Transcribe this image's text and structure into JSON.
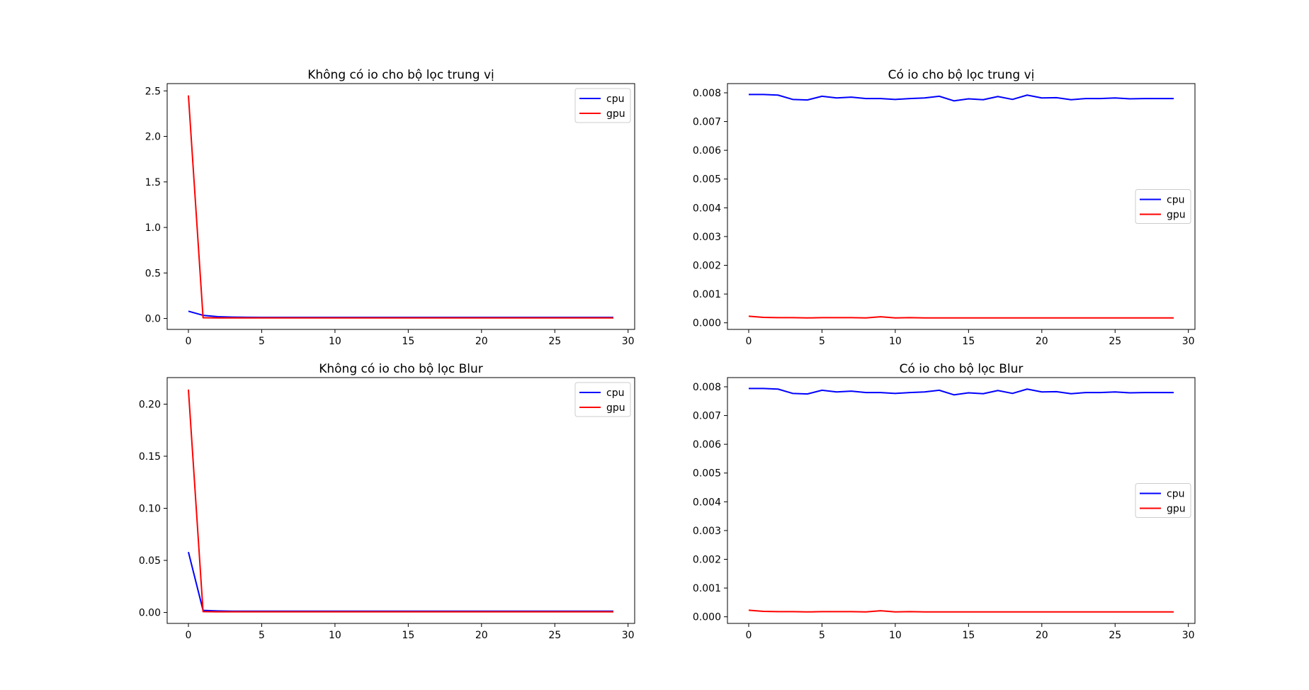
{
  "chart_data": [
    {
      "type": "line",
      "title": "Không có io cho bộ lọc trung vị",
      "xlabel": "",
      "ylabel": "",
      "xlim": [
        -1.45,
        30.45
      ],
      "ylim": [
        -0.12,
        2.58
      ],
      "xticks": [
        0,
        5,
        10,
        15,
        20,
        25,
        30
      ],
      "yticks": [
        0.0,
        0.5,
        1.0,
        1.5,
        2.0,
        2.5
      ],
      "ytick_labels": [
        "0.0",
        "0.5",
        "1.0",
        "1.5",
        "2.0",
        "2.5"
      ],
      "legend": "upper right",
      "x": [
        0,
        1,
        2,
        3,
        4,
        5,
        6,
        7,
        8,
        9,
        10,
        11,
        12,
        13,
        14,
        15,
        16,
        17,
        18,
        19,
        20,
        21,
        22,
        23,
        24,
        25,
        26,
        27,
        28,
        29
      ],
      "series": [
        {
          "name": "cpu",
          "color": "#0000ff",
          "values": [
            0.08,
            0.035,
            0.02,
            0.015,
            0.013,
            0.012,
            0.012,
            0.012,
            0.012,
            0.012,
            0.012,
            0.012,
            0.012,
            0.012,
            0.012,
            0.012,
            0.012,
            0.012,
            0.012,
            0.012,
            0.012,
            0.012,
            0.012,
            0.012,
            0.012,
            0.012,
            0.012,
            0.012,
            0.012,
            0.012
          ]
        },
        {
          "name": "gpu",
          "color": "#ff0000",
          "values": [
            2.45,
            0.008,
            0.006,
            0.006,
            0.006,
            0.006,
            0.006,
            0.006,
            0.006,
            0.006,
            0.006,
            0.006,
            0.006,
            0.006,
            0.006,
            0.006,
            0.006,
            0.006,
            0.006,
            0.006,
            0.006,
            0.006,
            0.006,
            0.006,
            0.006,
            0.006,
            0.006,
            0.006,
            0.006,
            0.006
          ]
        }
      ]
    },
    {
      "type": "line",
      "title": "Có io cho bộ lọc trung vị",
      "xlabel": "",
      "ylabel": "",
      "xlim": [
        -1.45,
        30.45
      ],
      "ylim": [
        -0.00023,
        0.00832
      ],
      "xticks": [
        0,
        5,
        10,
        15,
        20,
        25,
        30
      ],
      "yticks": [
        0.0,
        0.001,
        0.002,
        0.003,
        0.004,
        0.005,
        0.006,
        0.007,
        0.008
      ],
      "ytick_labels": [
        "0.000",
        "0.001",
        "0.002",
        "0.003",
        "0.004",
        "0.005",
        "0.006",
        "0.007",
        "0.008"
      ],
      "legend": "center right",
      "x": [
        0,
        1,
        2,
        3,
        4,
        5,
        6,
        7,
        8,
        9,
        10,
        11,
        12,
        13,
        14,
        15,
        16,
        17,
        18,
        19,
        20,
        21,
        22,
        23,
        24,
        25,
        26,
        27,
        28,
        29
      ],
      "series": [
        {
          "name": "cpu",
          "color": "#0000ff",
          "values": [
            0.00794,
            0.00794,
            0.00792,
            0.00777,
            0.00775,
            0.00788,
            0.00782,
            0.00785,
            0.0078,
            0.0078,
            0.00777,
            0.0078,
            0.00782,
            0.00788,
            0.00772,
            0.00779,
            0.00776,
            0.00787,
            0.00777,
            0.00792,
            0.00782,
            0.00783,
            0.00776,
            0.0078,
            0.0078,
            0.00782,
            0.00779,
            0.0078,
            0.0078,
            0.0078
          ]
        },
        {
          "name": "gpu",
          "color": "#ff0000",
          "values": [
            0.00023,
            0.00019,
            0.00018,
            0.00018,
            0.00017,
            0.00018,
            0.00018,
            0.00018,
            0.00017,
            0.00021,
            0.00017,
            0.00018,
            0.00017,
            0.00017,
            0.00017,
            0.00017,
            0.00017,
            0.00017,
            0.00017,
            0.00017,
            0.00017,
            0.00017,
            0.00017,
            0.00017,
            0.00017,
            0.00017,
            0.00017,
            0.00017,
            0.00017,
            0.00017
          ]
        }
      ]
    },
    {
      "type": "line",
      "title": "Không có io cho bộ lọc Blur",
      "xlabel": "",
      "ylabel": "",
      "xlim": [
        -1.45,
        30.45
      ],
      "ylim": [
        -0.0105,
        0.2255
      ],
      "xticks": [
        0,
        5,
        10,
        15,
        20,
        25,
        30
      ],
      "yticks": [
        0.0,
        0.05,
        0.1,
        0.15,
        0.2
      ],
      "ytick_labels": [
        "0.00",
        "0.05",
        "0.10",
        "0.15",
        "0.20"
      ],
      "legend": "upper right",
      "x": [
        0,
        1,
        2,
        3,
        4,
        5,
        6,
        7,
        8,
        9,
        10,
        11,
        12,
        13,
        14,
        15,
        16,
        17,
        18,
        19,
        20,
        21,
        22,
        23,
        24,
        25,
        26,
        27,
        28,
        29
      ],
      "series": [
        {
          "name": "cpu",
          "color": "#0000ff",
          "values": [
            0.058,
            0.002,
            0.0015,
            0.0012,
            0.0012,
            0.0012,
            0.0012,
            0.0012,
            0.0012,
            0.0012,
            0.0012,
            0.0012,
            0.0012,
            0.0012,
            0.0012,
            0.0012,
            0.0012,
            0.0012,
            0.0012,
            0.0012,
            0.0012,
            0.0012,
            0.0012,
            0.0012,
            0.0012,
            0.0012,
            0.0012,
            0.0012,
            0.0012,
            0.0012
          ]
        },
        {
          "name": "gpu",
          "color": "#ff0000",
          "values": [
            0.214,
            0.0008,
            0.0006,
            0.0006,
            0.0006,
            0.0006,
            0.0006,
            0.0006,
            0.0006,
            0.0006,
            0.0006,
            0.0006,
            0.0006,
            0.0006,
            0.0006,
            0.0006,
            0.0006,
            0.0006,
            0.0006,
            0.0006,
            0.0006,
            0.0006,
            0.0006,
            0.0006,
            0.0006,
            0.0006,
            0.0006,
            0.0006,
            0.0006,
            0.0006
          ]
        }
      ]
    },
    {
      "type": "line",
      "title": "Có io cho bộ lọc Blur",
      "xlabel": "",
      "ylabel": "",
      "xlim": [
        -1.45,
        30.45
      ],
      "ylim": [
        -0.00023,
        0.00832
      ],
      "xticks": [
        0,
        5,
        10,
        15,
        20,
        25,
        30
      ],
      "yticks": [
        0.0,
        0.001,
        0.002,
        0.003,
        0.004,
        0.005,
        0.006,
        0.007,
        0.008
      ],
      "ytick_labels": [
        "0.000",
        "0.001",
        "0.002",
        "0.003",
        "0.004",
        "0.005",
        "0.006",
        "0.007",
        "0.008"
      ],
      "legend": "center right",
      "x": [
        0,
        1,
        2,
        3,
        4,
        5,
        6,
        7,
        8,
        9,
        10,
        11,
        12,
        13,
        14,
        15,
        16,
        17,
        18,
        19,
        20,
        21,
        22,
        23,
        24,
        25,
        26,
        27,
        28,
        29
      ],
      "series": [
        {
          "name": "cpu",
          "color": "#0000ff",
          "values": [
            0.00794,
            0.00794,
            0.00792,
            0.00777,
            0.00775,
            0.00788,
            0.00782,
            0.00785,
            0.0078,
            0.0078,
            0.00777,
            0.0078,
            0.00782,
            0.00788,
            0.00772,
            0.00779,
            0.00776,
            0.00787,
            0.00777,
            0.00792,
            0.00782,
            0.00783,
            0.00776,
            0.0078,
            0.0078,
            0.00782,
            0.00779,
            0.0078,
            0.0078,
            0.0078
          ]
        },
        {
          "name": "gpu",
          "color": "#ff0000",
          "values": [
            0.00023,
            0.00019,
            0.00018,
            0.00018,
            0.00017,
            0.00018,
            0.00018,
            0.00018,
            0.00017,
            0.00021,
            0.00017,
            0.00018,
            0.00017,
            0.00017,
            0.00017,
            0.00017,
            0.00017,
            0.00017,
            0.00017,
            0.00017,
            0.00017,
            0.00017,
            0.00017,
            0.00017,
            0.00017,
            0.00017,
            0.00017,
            0.00017,
            0.00017,
            0.00017
          ]
        }
      ]
    }
  ]
}
